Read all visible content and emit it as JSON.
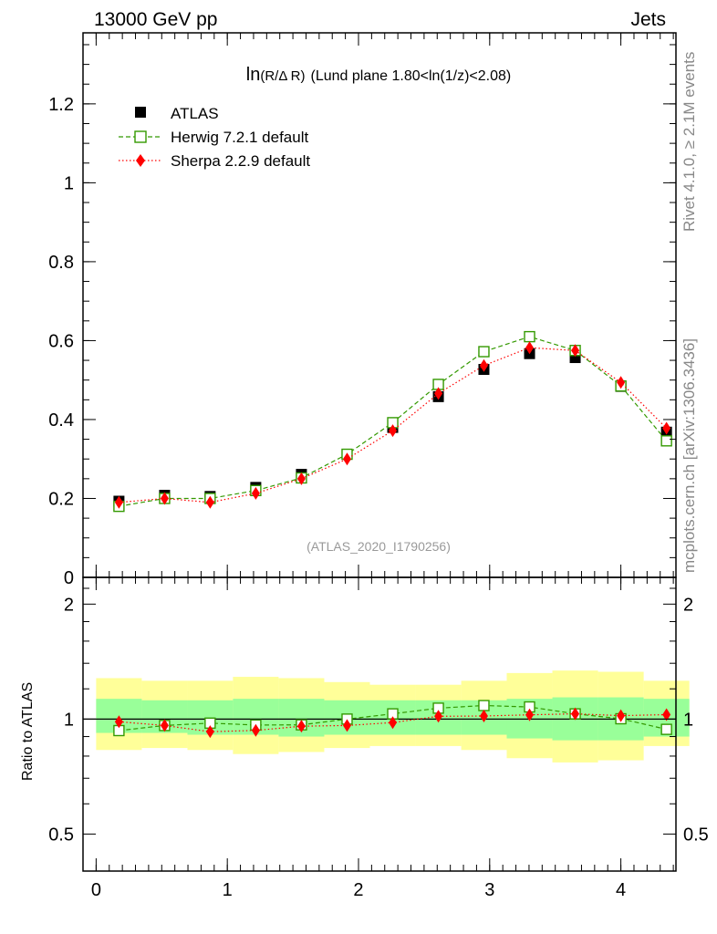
{
  "header": {
    "left": "13000 GeV pp",
    "right": "Jets"
  },
  "side_labels": {
    "rivet": "Rivet 4.1.0, ≥ 2.1M events",
    "mcplots": "mcplots.cern.ch [arXiv:1306.3436]"
  },
  "watermark": "(ATLAS_2020_I1790256)",
  "chart_data": [
    {
      "type": "scatter",
      "panel": "main",
      "title_prefix": "ln",
      "title_arg": "(R/Δ R)",
      "title_suffix": "(Lund plane 1.80<ln(1/z)<2.08)",
      "xlim": [
        -0.1,
        4.42
      ],
      "ylim": [
        0,
        1.38
      ],
      "y_major_ticks": [
        0,
        0.2,
        0.4,
        0.6,
        0.8,
        1,
        1.2
      ],
      "y_tick_labels": [
        "0",
        "0.2",
        "0.4",
        "0.6",
        "0.8",
        "1",
        "1.2"
      ],
      "x": [
        0.174,
        0.522,
        0.869,
        1.217,
        1.565,
        1.913,
        2.261,
        2.609,
        2.956,
        3.304,
        3.652,
        4.0,
        4.348
      ],
      "series": [
        {
          "name": "ATLAS",
          "values": [
            0.193,
            0.208,
            0.205,
            0.228,
            0.261,
            0.312,
            0.38,
            0.458,
            0.527,
            0.567,
            0.557,
            0.484,
            0.368
          ],
          "marker": "filled-square",
          "color": "#000000"
        },
        {
          "name": "Herwig 7.2.1 default",
          "values": [
            0.18,
            0.2,
            0.2,
            0.22,
            0.252,
            0.312,
            0.392,
            0.489,
            0.572,
            0.61,
            0.575,
            0.485,
            0.346
          ],
          "marker": "open-square",
          "line": "dashed",
          "color": "#339900"
        },
        {
          "name": "Sherpa 2.2.9 default",
          "values": [
            0.19,
            0.2,
            0.19,
            0.213,
            0.25,
            0.3,
            0.372,
            0.466,
            0.537,
            0.582,
            0.575,
            0.494,
            0.378
          ],
          "marker": "filled-diamond",
          "line": "dotted",
          "color": "#ff0000"
        }
      ]
    },
    {
      "type": "scatter",
      "panel": "ratio",
      "ylabel": "Ratio to ATLAS",
      "ylim": [
        0.4,
        2.35
      ],
      "yscale": "log",
      "y_major_ticks": [
        0.5,
        1,
        2
      ],
      "y_tick_labels": [
        "0.5",
        "1",
        "2"
      ],
      "xlim": [
        -0.1,
        4.42
      ],
      "x_major_ticks": [
        0,
        1,
        2,
        3,
        4
      ],
      "x_tick_labels": [
        "0",
        "1",
        "2",
        "3",
        "4"
      ],
      "reference_line": 1.0,
      "band_bins": [
        0.0,
        0.348,
        0.696,
        1.043,
        1.391,
        1.739,
        2.087,
        2.435,
        2.783,
        3.13,
        3.478,
        3.826,
        4.174,
        4.522
      ],
      "band_inner_low": [
        0.92,
        0.92,
        0.91,
        0.91,
        0.9,
        0.91,
        0.91,
        0.91,
        0.91,
        0.89,
        0.88,
        0.88,
        0.9
      ],
      "band_inner_high": [
        1.13,
        1.12,
        1.12,
        1.13,
        1.13,
        1.12,
        1.12,
        1.12,
        1.12,
        1.13,
        1.14,
        1.14,
        1.13
      ],
      "band_outer_low": [
        0.83,
        0.84,
        0.83,
        0.81,
        0.82,
        0.84,
        0.85,
        0.85,
        0.83,
        0.79,
        0.77,
        0.78,
        0.85
      ],
      "band_outer_high": [
        1.28,
        1.26,
        1.26,
        1.29,
        1.28,
        1.25,
        1.23,
        1.23,
        1.26,
        1.32,
        1.34,
        1.33,
        1.26
      ],
      "inner_color": "#99ff99",
      "outer_color": "#ffff99",
      "x": [
        0.174,
        0.522,
        0.869,
        1.217,
        1.565,
        1.913,
        2.261,
        2.609,
        2.956,
        3.304,
        3.652,
        4.0,
        4.348
      ],
      "series": [
        {
          "name": "Herwig 7.2.1 default",
          "values": [
            0.933,
            0.962,
            0.976,
            0.965,
            0.966,
            1.0,
            1.032,
            1.068,
            1.085,
            1.076,
            1.032,
            1.002,
            0.94
          ],
          "marker": "open-square",
          "line": "dashed",
          "color": "#339900"
        },
        {
          "name": "Sherpa 2.2.9 default",
          "values": [
            0.984,
            0.962,
            0.927,
            0.934,
            0.958,
            0.962,
            0.979,
            1.017,
            1.019,
            1.026,
            1.032,
            1.021,
            1.027
          ],
          "marker": "filled-diamond",
          "line": "dotted",
          "color": "#ff0000"
        }
      ]
    }
  ]
}
